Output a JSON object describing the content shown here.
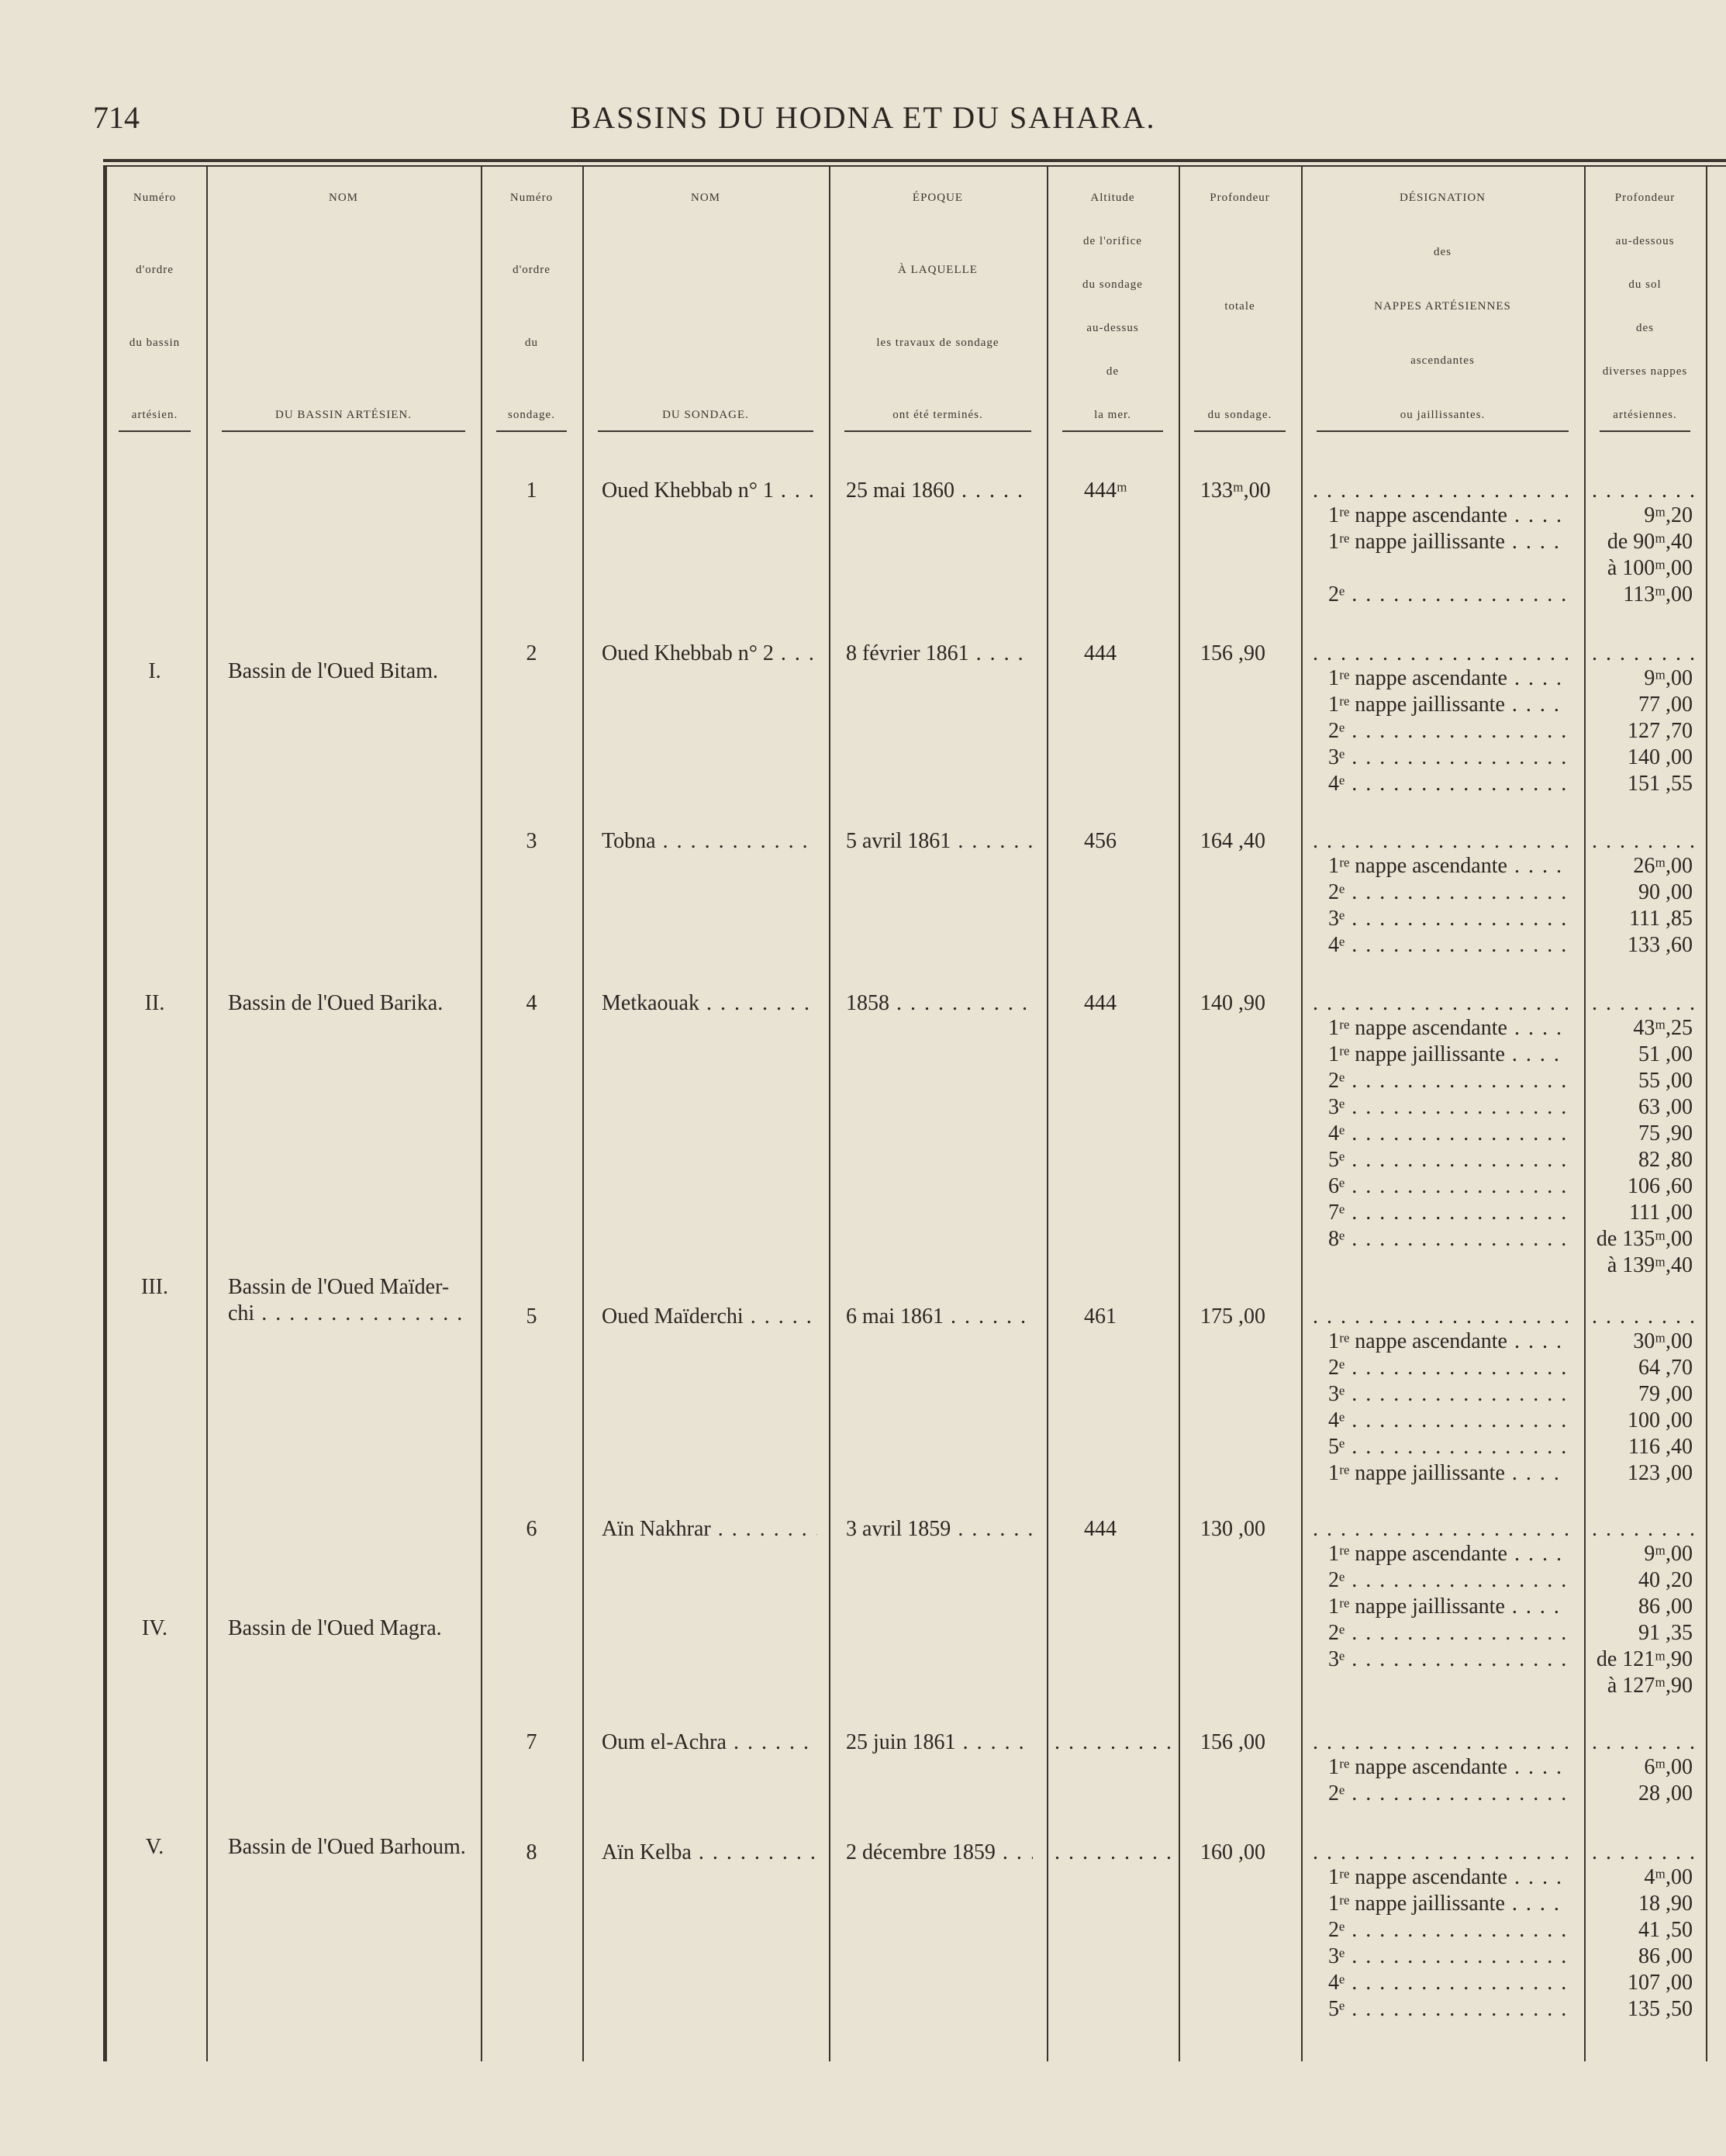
{
  "header": {
    "page_number": "714",
    "title": "BASSINS DU HODNA ET DU SAHARA."
  },
  "table": {
    "columns": [
      [
        "Numéro",
        "d'ordre",
        "du bassin",
        "artésien."
      ],
      [
        "NOM",
        "DU BASSIN ARTÉSIEN."
      ],
      [
        "Numéro",
        "d'ordre",
        "du",
        "sondage."
      ],
      [
        "NOM",
        "DU SONDAGE."
      ],
      [
        "ÉPOQUE",
        "À LAQUELLE",
        "les travaux de sondage",
        "ont été terminés."
      ],
      [
        "Altitude",
        "de l'orifice",
        "du sondage",
        "au-dessus",
        "de",
        "la mer."
      ],
      [
        "Profondeur",
        "totale",
        "du sondage."
      ],
      [
        "DÉSIGNATION",
        "des",
        "NAPPES ARTÉSIENNES",
        "ascendantes",
        "ou jaillissantes."
      ],
      [
        "Profondeur",
        "au-dessous",
        "du sol",
        "des",
        "diverses nappes",
        "artésiennes."
      ]
    ],
    "basins": [
      {
        "number": "I.",
        "name": [
          "Bassin de l'Oued Bitam."
        ],
        "wells": [
          {
            "number": "1",
            "name": "Oued Khebbab n° 1",
            "date": "25 mai 1860",
            "altitude": "444ᵐ",
            "depth": "133ᵐ,00",
            "layers": [
              [
                "1ʳᵉ nappe ascendante",
                "9ᵐ,20"
              ],
              [
                "1ʳᵉ nappe jaillissante",
                [
                  "de 90ᵐ,40",
                  "à 100ᵐ,00"
                ]
              ],
              [
                "2ᵉ",
                "113ᵐ,00"
              ]
            ]
          },
          {
            "number": "2",
            "name": "Oued Khebbab n° 2",
            "date": "8 février 1861",
            "altitude": "444",
            "depth": "156 ,90",
            "layers": [
              [
                "1ʳᵉ nappe ascendante",
                "9ᵐ,00"
              ],
              [
                "1ʳᵉ nappe jaillissante",
                "77 ,00"
              ],
              [
                "2ᵉ",
                "127 ,70"
              ],
              [
                "3ᵉ",
                "140 ,00"
              ],
              [
                "4ᵉ",
                "151 ,55"
              ]
            ]
          },
          {
            "number": "3",
            "name": "Tobna",
            "date": "5 avril 1861",
            "altitude": "456",
            "depth": "164 ,40",
            "layers": [
              [
                "1ʳᵉ nappe ascendante",
                "26ᵐ,00"
              ],
              [
                "2ᵉ",
                "90 ,00"
              ],
              [
                "3ᵉ",
                "111 ,85"
              ],
              [
                "4ᵉ",
                "133 ,60"
              ]
            ]
          }
        ]
      },
      {
        "number": "II.",
        "name": [
          "Bassin de l'Oued Barika."
        ],
        "wells": [
          {
            "number": "4",
            "name": "Metkaouak",
            "date": "1858",
            "altitude": "444",
            "depth": "140 ,90",
            "layers": [
              [
                "1ʳᵉ nappe ascendante",
                "43ᵐ,25"
              ],
              [
                "1ʳᵉ nappe jaillissante",
                "51 ,00"
              ],
              [
                "2ᵉ",
                "55 ,00"
              ],
              [
                "3ᵉ",
                "63 ,00"
              ],
              [
                "4ᵉ",
                "75 ,90"
              ],
              [
                "5ᵉ",
                "82 ,80"
              ],
              [
                "6ᵉ",
                "106 ,60"
              ],
              [
                "7ᵉ",
                "111 ,00"
              ],
              [
                "8ᵉ",
                [
                  "de 135ᵐ,00",
                  "à 139ᵐ,40"
                ]
              ]
            ]
          }
        ]
      },
      {
        "number": "III.",
        "name": [
          "Bassin de l'Oued Maïder-",
          "chi"
        ],
        "wells": [
          {
            "number": "5",
            "name": "Oued Maïderchi",
            "date": "6 mai 1861",
            "altitude": "461",
            "depth": "175 ,00",
            "layers": [
              [
                "1ʳᵉ nappe ascendante",
                "30ᵐ,00"
              ],
              [
                "2ᵉ",
                "64 ,70"
              ],
              [
                "3ᵉ",
                "79 ,00"
              ],
              [
                "4ᵉ",
                "100 ,00"
              ],
              [
                "5ᵉ",
                "116 ,40"
              ],
              [
                "1ʳᵉ nappe jaillissante",
                "123 ,00"
              ]
            ]
          }
        ]
      },
      {
        "number": "IV.",
        "name": [
          "Bassin de l'Oued Magra."
        ],
        "wells": [
          {
            "number": "6",
            "name": "Aïn Nakhrar",
            "date": "3 avril 1859",
            "altitude": "444",
            "depth": "130 ,00",
            "layers": [
              [
                "1ʳᵉ nappe ascendante",
                "9ᵐ,00"
              ],
              [
                "2ᵉ",
                "40 ,20"
              ],
              [
                "1ʳᵉ nappe jaillissante",
                "86 ,00"
              ],
              [
                "2ᵉ",
                "91 ,35"
              ],
              [
                "3ᵉ",
                [
                  "de 121ᵐ,90",
                  "à 127ᵐ,90"
                ]
              ]
            ]
          },
          {
            "number": "7",
            "name": "Oum el-Achra",
            "date": "25 juin 1861",
            "altitude": null,
            "depth": "156 ,00",
            "layers": [
              [
                "1ʳᵉ nappe ascendante",
                "6ᵐ,00"
              ],
              [
                "2ᵉ",
                "28 ,00"
              ]
            ]
          }
        ]
      },
      {
        "number": "V.",
        "name": [
          "Bassin de l'Oued Barhoum."
        ],
        "wells": [
          {
            "number": "8",
            "name": "Aïn Kelba",
            "date": "2 décembre 1859",
            "altitude": null,
            "depth": "160 ,00",
            "layers": [
              [
                "1ʳᵉ nappe ascendante",
                "4ᵐ,00"
              ],
              [
                "1ʳᵉ nappe jaillissante",
                "18 ,90"
              ],
              [
                "2ᵉ",
                "41 ,50"
              ],
              [
                "3ᵉ",
                "86 ,00"
              ],
              [
                "4ᵉ",
                "107 ,00"
              ],
              [
                "5ᵉ",
                "135 ,50"
              ]
            ]
          }
        ]
      }
    ]
  }
}
